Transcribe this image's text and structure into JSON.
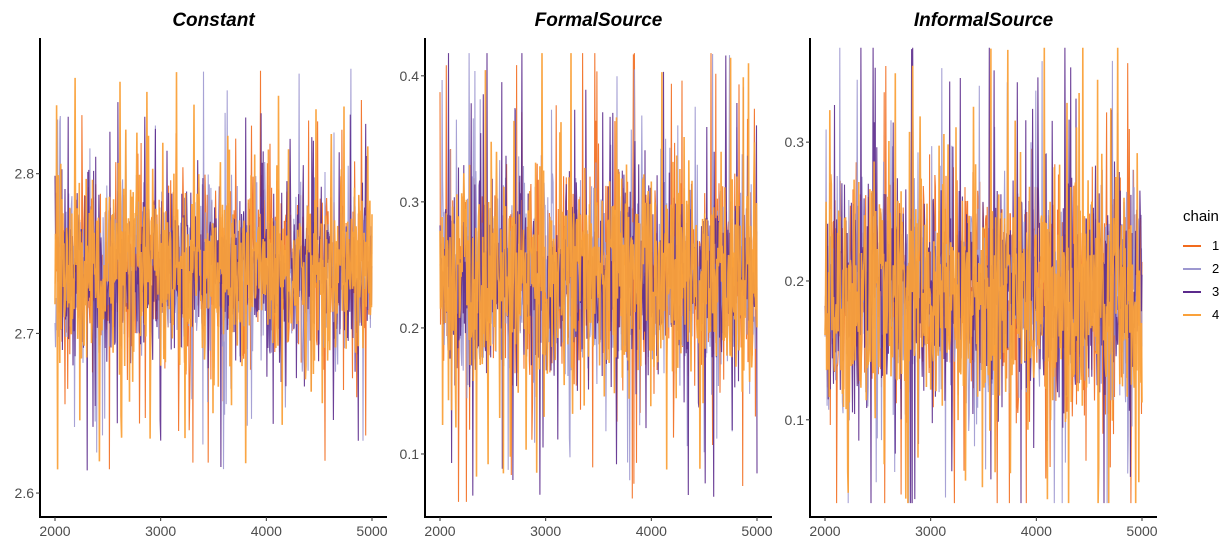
{
  "chart_data": [
    {
      "type": "line",
      "title": "Constant",
      "xlabel": "",
      "ylabel": "",
      "xlim": [
        2000,
        5000
      ],
      "ylim": [
        2.585,
        2.885
      ],
      "x_ticks": [
        2000,
        3000,
        4000,
        5000
      ],
      "y_ticks": [
        2.6,
        2.7,
        2.8
      ],
      "y_tick_labels": [
        "2.6",
        "2.7",
        "2.8"
      ],
      "center": 2.74,
      "spread": 0.03,
      "min": 2.595,
      "max": 2.88
    },
    {
      "type": "line",
      "title": "FormalSource",
      "xlabel": "",
      "ylabel": "",
      "xlim": [
        2000,
        5000
      ],
      "ylim": [
        0.05,
        0.43
      ],
      "x_ticks": [
        2000,
        3000,
        4000,
        5000
      ],
      "y_ticks": [
        0.1,
        0.2,
        0.3,
        0.4
      ],
      "y_tick_labels": [
        "0.1",
        "0.2",
        "0.3",
        "0.4"
      ],
      "center": 0.24,
      "spread": 0.045,
      "min": 0.062,
      "max": 0.418
    },
    {
      "type": "line",
      "title": "InformalSource",
      "xlabel": "",
      "ylabel": "",
      "xlim": [
        2000,
        5000
      ],
      "ylim": [
        0.03,
        0.375
      ],
      "x_ticks": [
        2000,
        3000,
        4000,
        5000
      ],
      "y_ticks": [
        0.1,
        0.2,
        0.3
      ],
      "y_tick_labels": [
        "0.1",
        "0.2",
        "0.3"
      ],
      "center": 0.19,
      "spread": 0.045,
      "min": 0.04,
      "max": 0.368
    }
  ],
  "legend": {
    "title": "chain",
    "items": [
      {
        "label": "1",
        "color": "#f26b1d"
      },
      {
        "label": "2",
        "color": "#9d98d0"
      },
      {
        "label": "3",
        "color": "#5b2a8c"
      },
      {
        "label": "4",
        "color": "#faa13a"
      }
    ]
  }
}
